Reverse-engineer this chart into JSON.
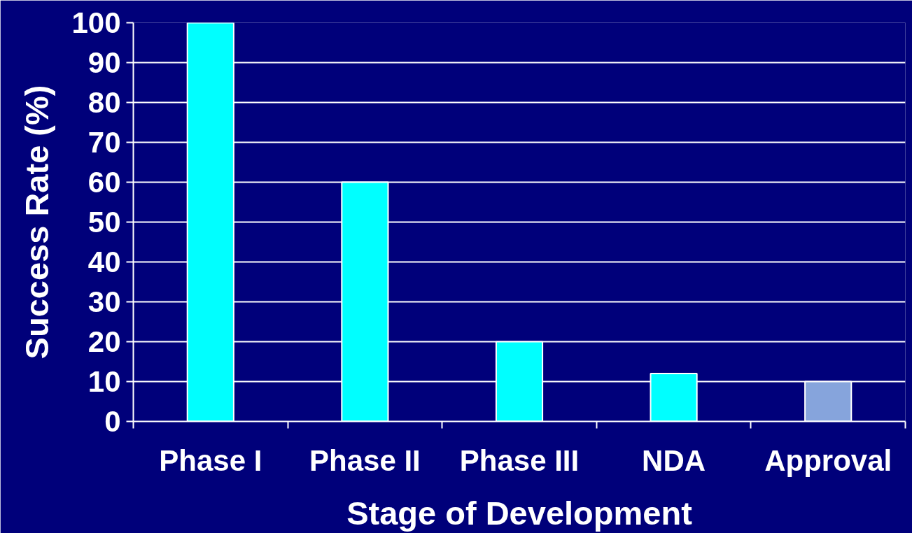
{
  "chart_data": {
    "type": "bar",
    "categories": [
      "Phase I",
      "Phase II",
      "Phase III",
      "NDA",
      "Approval"
    ],
    "values": [
      100,
      60,
      20,
      12,
      10
    ],
    "colors": [
      "#00ffff",
      "#00ffff",
      "#00ffff",
      "#00ffff",
      "#86a4dc"
    ],
    "xlabel": "Stage of Development",
    "ylabel": "Success Rate (%)",
    "ylim": [
      0,
      100
    ],
    "yticks": [
      0,
      10,
      20,
      30,
      40,
      50,
      60,
      70,
      80,
      90,
      100
    ],
    "grid": "y"
  }
}
